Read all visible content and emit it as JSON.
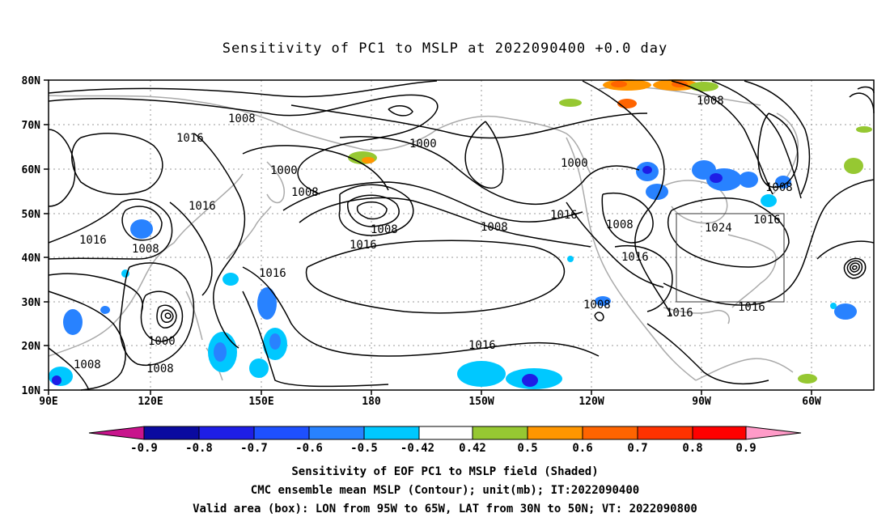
{
  "title": "Sensitivity of PC1 to MSLP at 2022090400 +0.0 day",
  "lat_labels": [
    "80N",
    "70N",
    "60N",
    "50N",
    "40N",
    "30N",
    "20N",
    "10N"
  ],
  "lon_labels": [
    "90E",
    "120E",
    "150E",
    "180",
    "150W",
    "120W",
    "90W",
    "60W"
  ],
  "contour_labels": [
    {
      "text": "1008",
      "pos": "west Siberia"
    },
    {
      "text": "1016",
      "pos": "west Siberia"
    },
    {
      "text": "1016",
      "pos": "central Asia"
    },
    {
      "text": "1016",
      "pos": "western Asia"
    },
    {
      "text": "1008",
      "pos": "east Asia"
    },
    {
      "text": "1000",
      "pos": "east Siberia"
    },
    {
      "text": "1008",
      "pos": "east Siberia"
    },
    {
      "text": "1000",
      "pos": "Alaska"
    },
    {
      "text": "1000",
      "pos": "Canada"
    },
    {
      "text": "1008",
      "pos": "Aleutian low"
    },
    {
      "text": "1016",
      "pos": "north Pacific"
    },
    {
      "text": "1008",
      "pos": "north Pacific"
    },
    {
      "text": "1016",
      "pos": "NE Pacific"
    },
    {
      "text": "1008",
      "pos": "western US"
    },
    {
      "text": "1016",
      "pos": "western US"
    },
    {
      "text": "1016",
      "pos": "west Pacific"
    },
    {
      "text": "1016",
      "pos": "subtropical Pacific"
    },
    {
      "text": "1000",
      "pos": "typhoon"
    },
    {
      "text": "1008",
      "pos": "typhoon"
    },
    {
      "text": "1008",
      "pos": "South China Sea"
    },
    {
      "text": "1008",
      "pos": "east Pacific"
    },
    {
      "text": "1016",
      "pos": "Gulf of Mexico"
    },
    {
      "text": "1024",
      "pos": "valid box"
    },
    {
      "text": "1016",
      "pos": "NE box"
    },
    {
      "text": "1016",
      "pos": "SE box"
    },
    {
      "text": "1008",
      "pos": "Labrador"
    },
    {
      "text": "1008",
      "pos": "Greenland"
    }
  ],
  "colorbar": {
    "tick_labels": [
      "-0.9",
      "-0.8",
      "-0.7",
      "-0.6",
      "-0.5",
      "-0.42",
      "0.42",
      "0.5",
      "0.6",
      "0.7",
      "0.8",
      "0.9"
    ],
    "colors": [
      "#c8148c",
      "#0a0aa0",
      "#1e1ee6",
      "#1e50ff",
      "#2882ff",
      "#00c8ff",
      "#ffffff",
      "#96c832",
      "#ff9600",
      "#ff6400",
      "#ff3200",
      "#ff0000",
      "#ff9bc8"
    ]
  },
  "valid_box": {
    "lon_west": "95W",
    "lon_east": "65W",
    "lat_south": "30N",
    "lat_north": "50N"
  },
  "footer": {
    "line1": "Sensitivity of EOF PC1 to MSLP field (Shaded)",
    "line2": "CMC ensemble mean MSLP (Contour); unit(mb); IT:2022090400",
    "line3": "Valid area (box): LON from 95W to 65W, LAT from 30N to 50N; VT: 2022090800"
  }
}
